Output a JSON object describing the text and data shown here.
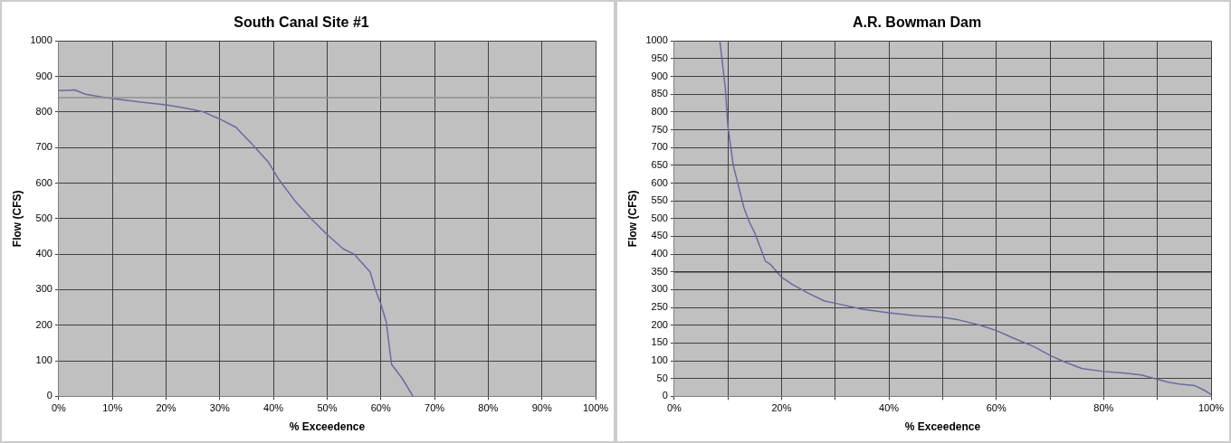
{
  "chart_data": [
    {
      "type": "line",
      "title": "South Canal Site #1",
      "xlabel": "% Exceedence",
      "ylabel": "Flow (CFS)",
      "grid": true,
      "legend": false,
      "marker": "none",
      "line_style": "solid",
      "xlim": [
        0,
        100
      ],
      "xticks": [
        {
          "value": 0,
          "label": "0%"
        },
        {
          "value": 10,
          "label": "10%"
        },
        {
          "value": 20,
          "label": "20%"
        },
        {
          "value": 30,
          "label": "30%"
        },
        {
          "value": 40,
          "label": "40%"
        },
        {
          "value": 50,
          "label": "50%"
        },
        {
          "value": 60,
          "label": "60%"
        },
        {
          "value": 70,
          "label": "70%"
        },
        {
          "value": 80,
          "label": "80%"
        },
        {
          "value": 90,
          "label": "90%"
        },
        {
          "value": 100,
          "label": "100%"
        }
      ],
      "ylim": [
        0,
        1000
      ],
      "yticks": [
        0,
        100,
        200,
        300,
        400,
        500,
        600,
        700,
        800,
        900,
        1000
      ],
      "ref_lines": [
        {
          "axis": "y",
          "value": 840,
          "color": "#909090"
        }
      ],
      "series": [
        {
          "color": "#6a6aa0",
          "x": [
            0,
            3,
            5,
            8,
            10,
            15,
            20,
            24,
            27,
            30,
            33,
            36,
            39,
            41,
            44,
            47,
            50,
            53,
            55,
            58,
            59,
            60,
            61,
            62,
            64,
            66
          ],
          "values": [
            860,
            862,
            850,
            842,
            838,
            828,
            820,
            810,
            800,
            780,
            757,
            710,
            660,
            610,
            550,
            500,
            455,
            415,
            400,
            350,
            300,
            260,
            210,
            90,
            50,
            0
          ]
        }
      ]
    },
    {
      "type": "line",
      "title": "A.R. Bowman Dam",
      "xlabel": "% Exceedence",
      "ylabel": "Flow (CFS)",
      "grid": true,
      "legend": false,
      "marker": "none",
      "line_style": "solid",
      "xlim": [
        0,
        100
      ],
      "xticks": [
        {
          "value": 0,
          "label": "0%"
        },
        {
          "value": 10,
          "label": null
        },
        {
          "value": 20,
          "label": "20%"
        },
        {
          "value": 30,
          "label": null
        },
        {
          "value": 40,
          "label": "40%"
        },
        {
          "value": 50,
          "label": null
        },
        {
          "value": 60,
          "label": "60%"
        },
        {
          "value": 70,
          "label": null
        },
        {
          "value": 80,
          "label": "80%"
        },
        {
          "value": 90,
          "label": null
        },
        {
          "value": 100,
          "label": "100%"
        }
      ],
      "ylim": [
        0,
        1000
      ],
      "yticks": [
        0,
        50,
        100,
        150,
        200,
        250,
        300,
        350,
        400,
        450,
        500,
        550,
        600,
        650,
        700,
        750,
        800,
        850,
        900,
        950,
        1000
      ],
      "ref_lines": [
        {
          "axis": "y",
          "value": 350,
          "color": "#303030"
        }
      ],
      "series": [
        {
          "color": "#6a6aa0",
          "x": [
            8.5,
            9.5,
            10,
            11,
            12,
            13,
            14,
            15,
            16,
            17,
            18,
            20,
            22,
            25,
            28,
            30,
            35,
            40,
            45,
            50,
            53,
            57,
            60,
            63,
            67,
            70,
            73,
            76,
            80,
            84,
            87,
            90,
            92,
            94,
            97,
            99,
            100
          ],
          "values": [
            1000,
            870,
            760,
            650,
            590,
            530,
            490,
            460,
            420,
            380,
            370,
            335,
            315,
            290,
            268,
            262,
            245,
            235,
            227,
            222,
            215,
            200,
            185,
            165,
            140,
            115,
            95,
            78,
            70,
            65,
            60,
            48,
            40,
            35,
            30,
            15,
            5
          ]
        }
      ]
    }
  ]
}
